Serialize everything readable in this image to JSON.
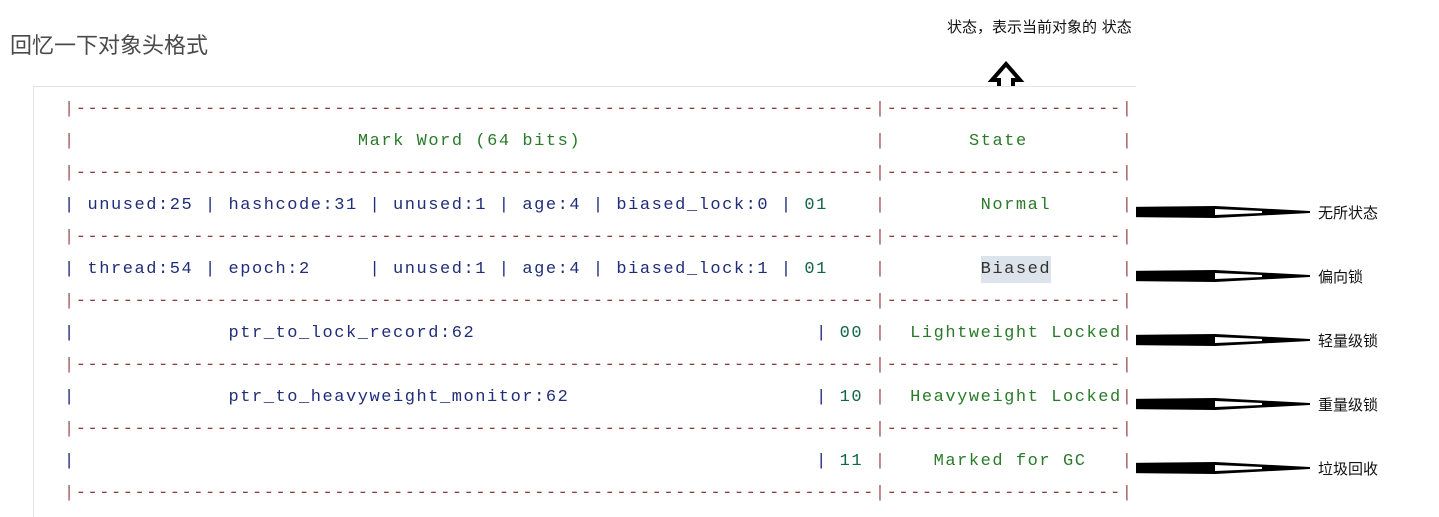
{
  "title": "回忆一下对象头格式",
  "note": "状态，表示当前对象的 状态",
  "table": {
    "separator": "|--------------------------------------------------------------------|--------------------|",
    "header": {
      "mark_word": "Mark Word (64 bits)",
      "state": "State"
    },
    "rows": [
      {
        "fields": "| unused:25 | hashcode:31 | unused:1 | age:4 | biased_lock:0 | ",
        "bits": "01",
        "state": "Normal",
        "annotation": "无所状态"
      },
      {
        "fields": "| thread:54 | epoch:2     | unused:1 | age:4 | biased_lock:1 | ",
        "bits": "01",
        "state": "Biased",
        "annotation": "偏向锁",
        "highlight": true
      },
      {
        "fields": "|             ptr_to_lock_record:62                             | ",
        "bits": "00",
        "state": "Lightweight Locked",
        "annotation": "轻量级锁"
      },
      {
        "fields": "|             ptr_to_heavyweight_monitor:62                     | ",
        "bits": "10",
        "state": "Heavyweight Locked",
        "annotation": "重量级锁"
      },
      {
        "fields": "|                                                               | ",
        "bits": "11",
        "state": "Marked for GC",
        "annotation": "垃圾回收"
      }
    ]
  },
  "colors": {
    "pipe": "#a05a5a",
    "identifier": "#1f2d7a",
    "number": "#116644",
    "state": "#2a7a2a",
    "highlight": "#dde3ea"
  }
}
